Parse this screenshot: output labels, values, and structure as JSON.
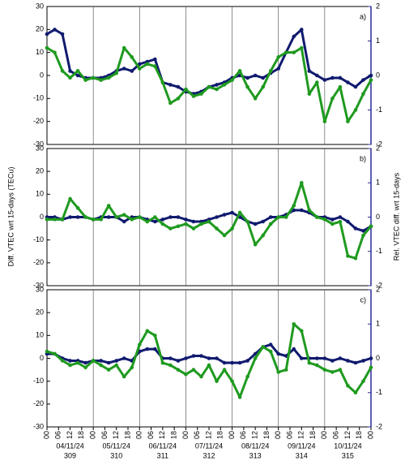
{
  "chart_data": [
    {
      "type": "scatter",
      "label": "a)",
      "x": [
        0,
        4,
        8,
        12,
        16,
        20,
        24,
        28,
        32,
        36,
        40,
        44,
        48,
        52,
        56,
        60,
        64,
        68,
        72,
        76,
        80,
        84,
        88,
        92,
        96,
        100,
        104,
        108,
        112,
        116,
        120,
        124,
        128,
        132,
        136,
        140,
        144,
        148,
        152,
        156,
        160,
        164,
        168
      ],
      "xlim": [
        0,
        168
      ],
      "ylim": [
        -30,
        30
      ],
      "yticks": [
        -30,
        -20,
        -10,
        0,
        10,
        20,
        30
      ],
      "y2lim": [
        -2,
        2
      ],
      "y2ticks": [
        -2,
        -1,
        0,
        1,
        2
      ],
      "y2color": "#2a2a9c",
      "series": [
        {
          "color": "#101a6e",
          "axis": "y2",
          "values": [
            1.2,
            1.33,
            1.2,
            0.13,
            0,
            -0.07,
            -0.07,
            -0.07,
            0,
            0.13,
            0.2,
            0.13,
            0.33,
            0.4,
            0.47,
            -0.2,
            -0.27,
            -0.33,
            -0.47,
            -0.53,
            -0.47,
            -0.33,
            -0.27,
            -0.2,
            -0.07,
            0,
            -0.07,
            0,
            -0.07,
            0.07,
            0.2,
            0.67,
            1.13,
            1.33,
            0.13,
            0,
            -0.13,
            -0.07,
            -0.07,
            -0.2,
            -0.33,
            -0.13,
            0
          ]
        },
        {
          "color": "#1f9a1f",
          "values": [
            12,
            10,
            2,
            -1,
            2,
            -2,
            -1,
            -2,
            -1,
            1,
            12,
            8,
            3,
            5,
            4,
            -3,
            -12,
            -10,
            -6,
            -9,
            -8,
            -5,
            -6,
            -4,
            -2,
            2,
            -5,
            -10,
            -5,
            2,
            8,
            10,
            10,
            12,
            -8,
            -3,
            -20,
            -10,
            -5,
            -20,
            -15,
            -8,
            -2
          ]
        }
      ]
    },
    {
      "type": "scatter",
      "label": "b)",
      "ylabel": "Diff. VTEC wrt 15-days (TECu)",
      "y2label": "Rel. VTEC diff. wrt 15-days",
      "x": [
        0,
        4,
        8,
        12,
        16,
        20,
        24,
        28,
        32,
        36,
        40,
        44,
        48,
        52,
        56,
        60,
        64,
        68,
        72,
        76,
        80,
        84,
        88,
        92,
        96,
        100,
        104,
        108,
        112,
        116,
        120,
        124,
        128,
        132,
        136,
        140,
        144,
        148,
        152,
        156,
        160,
        164,
        168
      ],
      "xlim": [
        0,
        168
      ],
      "ylim": [
        -30,
        30
      ],
      "yticks": [
        -30,
        -20,
        -10,
        0,
        10,
        20,
        30
      ],
      "y2lim": [
        -2,
        2
      ],
      "y2ticks": [
        -2,
        -1,
        0,
        1,
        2
      ],
      "y2color": "#2a2a9c",
      "series": [
        {
          "color": "#101a6e",
          "axis": "y2",
          "values": [
            0,
            0,
            -0.07,
            0,
            0,
            0,
            -0.07,
            0,
            0,
            0,
            -0.13,
            0,
            0,
            -0.07,
            -0.13,
            -0.07,
            0,
            0,
            -0.07,
            -0.13,
            -0.13,
            -0.07,
            0,
            0.07,
            0.13,
            0,
            -0.13,
            -0.2,
            -0.13,
            0,
            0,
            0.07,
            0.2,
            0.2,
            0.13,
            0,
            0,
            -0.07,
            0,
            -0.13,
            -0.33,
            -0.4,
            -0.27
          ]
        },
        {
          "color": "#1f9a1f",
          "values": [
            -1,
            -1,
            -1,
            8,
            4,
            0,
            -1,
            -1,
            5,
            0,
            1,
            -1,
            0,
            -2,
            0,
            -3,
            -5,
            -4,
            -3,
            -5,
            -3,
            -2,
            -5,
            -8,
            -5,
            2,
            -2,
            -12,
            -8,
            -3,
            0,
            0,
            5,
            15,
            3,
            0,
            -1,
            -3,
            -2,
            -17,
            -18,
            -8,
            -4
          ]
        }
      ]
    },
    {
      "type": "scatter",
      "label": "c)",
      "x": [
        0,
        4,
        8,
        12,
        16,
        20,
        24,
        28,
        32,
        36,
        40,
        44,
        48,
        52,
        56,
        60,
        64,
        68,
        72,
        76,
        80,
        84,
        88,
        92,
        96,
        100,
        104,
        108,
        112,
        116,
        120,
        124,
        128,
        132,
        136,
        140,
        144,
        148,
        152,
        156,
        160,
        164,
        168
      ],
      "xlim": [
        0,
        168
      ],
      "ylim": [
        -30,
        30
      ],
      "yticks": [
        -30,
        -20,
        -10,
        0,
        10,
        20,
        30
      ],
      "y2lim": [
        -2,
        2
      ],
      "y2ticks": [
        -2,
        -1,
        0,
        1,
        2
      ],
      "y2color": "#2a2a9c",
      "xticks": [
        {
          "value": 0,
          "label": "00"
        },
        {
          "value": 6,
          "label": "06"
        },
        {
          "value": 12,
          "label": "12"
        },
        {
          "value": 18,
          "label": "18"
        },
        {
          "value": 24,
          "label": "00"
        },
        {
          "value": 30,
          "label": "06"
        },
        {
          "value": 36,
          "label": "12"
        },
        {
          "value": 42,
          "label": "18"
        },
        {
          "value": 48,
          "label": "00"
        },
        {
          "value": 54,
          "label": "06"
        },
        {
          "value": 60,
          "label": "12"
        },
        {
          "value": 66,
          "label": "18"
        },
        {
          "value": 72,
          "label": "00"
        },
        {
          "value": 78,
          "label": "06"
        },
        {
          "value": 84,
          "label": "12"
        },
        {
          "value": 90,
          "label": "18"
        },
        {
          "value": 96,
          "label": "00"
        },
        {
          "value": 102,
          "label": "06"
        },
        {
          "value": 108,
          "label": "12"
        },
        {
          "value": 114,
          "label": "18"
        },
        {
          "value": 120,
          "label": "00"
        },
        {
          "value": 126,
          "label": "06"
        },
        {
          "value": 132,
          "label": "12"
        },
        {
          "value": 138,
          "label": "18"
        },
        {
          "value": 144,
          "label": "00"
        },
        {
          "value": 150,
          "label": "06"
        },
        {
          "value": 156,
          "label": "12"
        },
        {
          "value": 162,
          "label": "18"
        },
        {
          "value": 168,
          "label": "00"
        }
      ],
      "x_date_labels": [
        "04/11/24",
        "05/11/24",
        "06/11/24",
        "07/11/24",
        "08/11/24",
        "09/11/24",
        "10/11/24"
      ],
      "x_doy_labels": [
        "309",
        "310",
        "311",
        "312",
        "313",
        "314",
        "315"
      ],
      "series": [
        {
          "color": "#101a6e",
          "axis": "y2",
          "values": [
            0.13,
            0.13,
            0,
            -0.07,
            -0.07,
            -0.13,
            -0.07,
            -0.07,
            -0.13,
            -0.07,
            0,
            -0.07,
            0.2,
            0.27,
            0.27,
            0,
            0,
            -0.07,
            0,
            0.07,
            0.07,
            0,
            0,
            -0.13,
            -0.13,
            -0.13,
            -0.07,
            0.13,
            0.33,
            0.4,
            0.13,
            0.07,
            0.27,
            0,
            0,
            0,
            0,
            -0.07,
            0,
            -0.07,
            -0.13,
            -0.07,
            0
          ]
        },
        {
          "color": "#1f9a1f",
          "values": [
            3,
            2,
            -1,
            -3,
            -2,
            -4,
            -1,
            -3,
            -5,
            -3,
            -8,
            -4,
            6,
            12,
            10,
            -2,
            -3,
            -5,
            -7,
            -5,
            -8,
            -3,
            -10,
            -5,
            -10,
            -17,
            -8,
            0,
            5,
            3,
            -6,
            -5,
            15,
            12,
            -2,
            -3,
            -5,
            -6,
            -5,
            -12,
            -15,
            -10,
            -4
          ]
        }
      ]
    }
  ]
}
